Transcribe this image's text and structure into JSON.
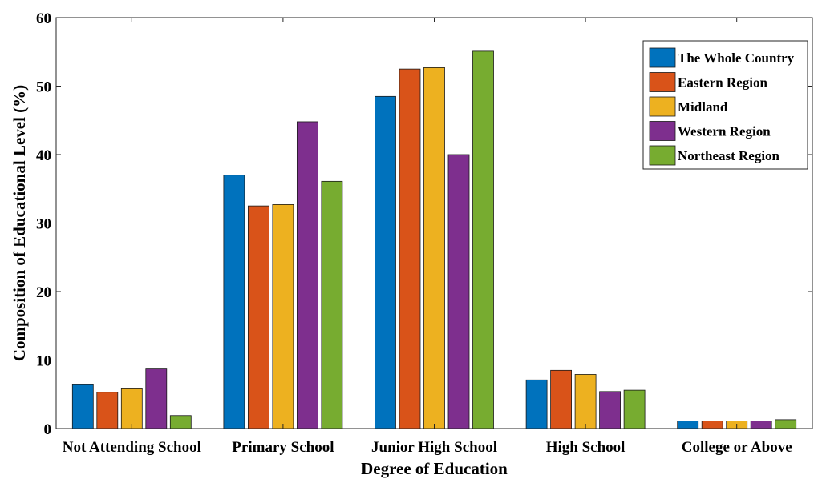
{
  "chart_data": {
    "type": "bar",
    "xlabel": "Degree of Education",
    "ylabel": "Composition of Educational Level (%)",
    "ylim": [
      0,
      60
    ],
    "yticks": [
      0,
      10,
      20,
      30,
      40,
      50,
      60
    ],
    "grid": false,
    "legend_position": "top-right",
    "categories": [
      "Not Attending School",
      "Primary School",
      "Junior High School",
      "High School",
      "College or Above"
    ],
    "series": [
      {
        "name": "The Whole Country",
        "color": "#0072BD",
        "values": [
          6.4,
          37.0,
          48.5,
          7.1,
          1.1
        ]
      },
      {
        "name": "Eastern Region",
        "color": "#D95319",
        "values": [
          5.3,
          32.5,
          52.5,
          8.5,
          1.1
        ]
      },
      {
        "name": "Midland",
        "color": "#EDB120",
        "values": [
          5.8,
          32.7,
          52.7,
          7.9,
          1.1
        ]
      },
      {
        "name": "Western Region",
        "color": "#7E2F8E",
        "values": [
          8.7,
          44.8,
          40.0,
          5.4,
          1.1
        ]
      },
      {
        "name": "Northeast Region",
        "color": "#77AC30",
        "values": [
          1.9,
          36.1,
          55.1,
          5.6,
          1.3
        ]
      }
    ]
  }
}
